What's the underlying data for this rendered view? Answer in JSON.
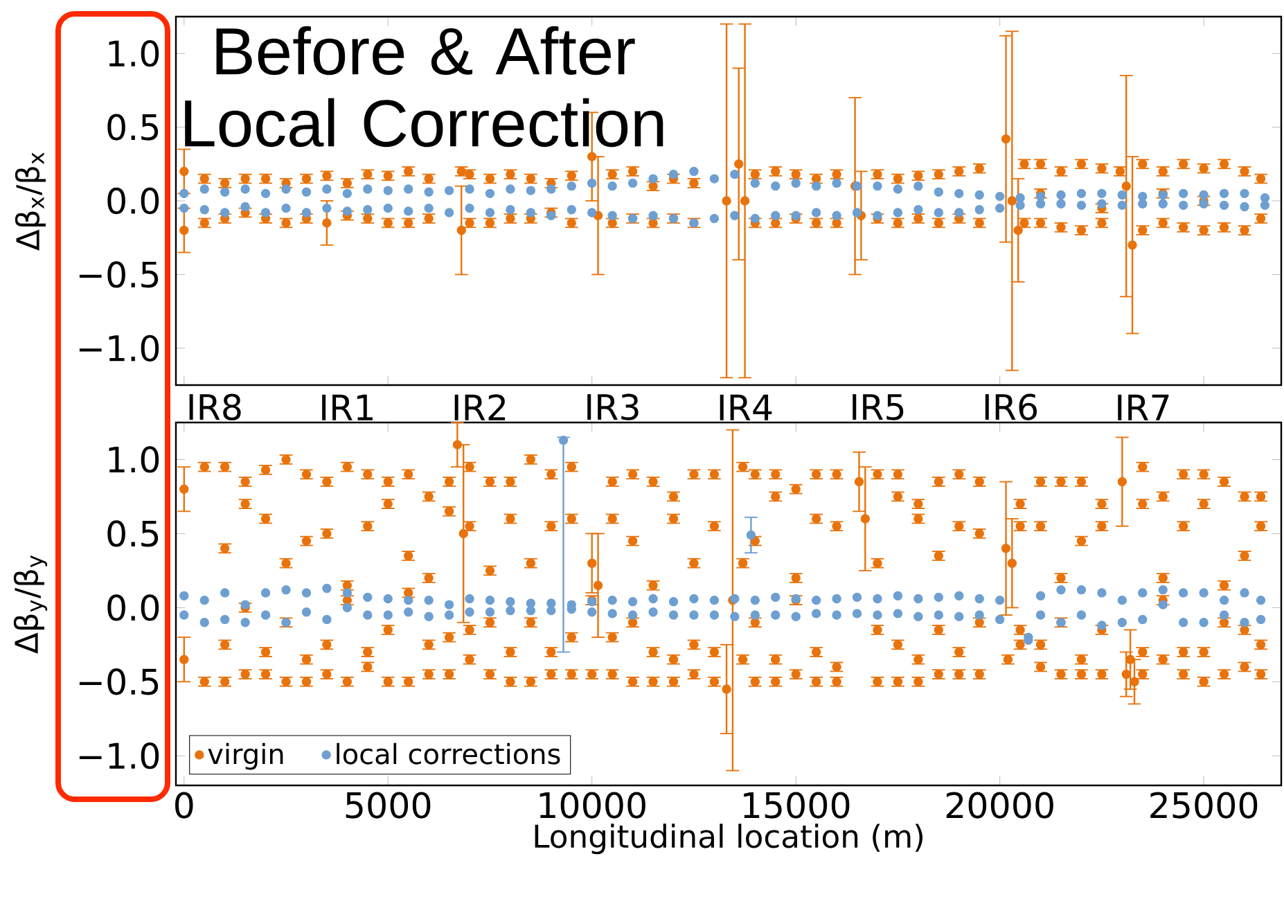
{
  "chart_data": [
    {
      "type": "scatter",
      "ylabel": "Δβ$_{x}$/β$_{x}$",
      "annotations": [
        "Before & After Local Correction"
      ],
      "xlim": [
        -200,
        26900
      ],
      "ylim": [
        -1.25,
        1.25
      ],
      "xticks": [
        0,
        5000,
        10000,
        15000,
        20000,
        25000
      ],
      "yticks": [
        {
          "value": -1,
          "label": "−1.0"
        },
        {
          "value": -0.5,
          "label": "−0.5"
        },
        {
          "value": 0,
          "label": "0.0"
        },
        {
          "value": 0.5,
          "label": "0.5"
        },
        {
          "value": 1,
          "label": "1.0"
        }
      ],
      "tick_labels": "y",
      "marker": "circle",
      "series": [
        {
          "color": "#e8730c",
          "x": [
            0,
            0,
            500,
            500,
            1000,
            1000,
            1500,
            1500,
            2000,
            2000,
            2500,
            2500,
            3000,
            3000,
            3500,
            3500,
            4000,
            4000,
            4500,
            4500,
            5000,
            5000,
            5500,
            5500,
            6000,
            6000,
            6800,
            6800,
            7000,
            7000,
            7500,
            7500,
            8000,
            8000,
            8500,
            8500,
            9000,
            9000,
            9500,
            9500,
            10000,
            10150,
            10500,
            10500,
            11000,
            11000,
            11500,
            11500,
            12000,
            12000,
            12500,
            12500,
            13300,
            13600,
            13750,
            14000,
            14000,
            14500,
            14500,
            15000,
            15000,
            15500,
            15500,
            16000,
            16000,
            16450,
            16600,
            17000,
            17000,
            17500,
            17500,
            18000,
            18000,
            18500,
            18500,
            19000,
            19000,
            19500,
            19500,
            20150,
            20300,
            20450,
            20600,
            20600,
            21000,
            21000,
            21000,
            21500,
            21500,
            22000,
            22000,
            22500,
            22500,
            22500,
            22950,
            23100,
            23250,
            23500,
            23500,
            24000,
            24000,
            24000,
            24500,
            24500,
            25000,
            25000,
            25000,
            25500,
            25500,
            26000,
            26000,
            26400,
            26400
          ],
          "values": [
            0.2,
            -0.2,
            0.15,
            -0.15,
            0.12,
            -0.12,
            0.15,
            -0.08,
            0.15,
            -0.12,
            0.12,
            -0.15,
            0.15,
            -0.12,
            0.17,
            -0.15,
            0.12,
            -0.1,
            0.18,
            -0.12,
            0.17,
            -0.15,
            0.2,
            -0.15,
            0.15,
            -0.12,
            0.2,
            -0.2,
            0.18,
            -0.15,
            0.15,
            -0.15,
            0.18,
            -0.12,
            0.15,
            -0.12,
            0.12,
            -0.08,
            0.17,
            -0.15,
            0.3,
            -0.1,
            0.18,
            -0.15,
            0.2,
            -0.12,
            0.1,
            -0.15,
            0.15,
            -0.12,
            0.12,
            -0.15,
            0.0,
            0.25,
            0.0,
            0.18,
            -0.15,
            0.2,
            -0.15,
            0.18,
            -0.12,
            0.15,
            -0.15,
            0.18,
            -0.15,
            0.1,
            -0.1,
            0.18,
            -0.12,
            0.15,
            -0.15,
            0.17,
            -0.12,
            0.18,
            -0.15,
            0.2,
            -0.12,
            0.22,
            -0.15,
            0.42,
            0.0,
            -0.2,
            0.25,
            -0.15,
            0.25,
            0.05,
            -0.15,
            0.2,
            -0.18,
            0.25,
            -0.2,
            0.22,
            -0.05,
            -0.15,
            0.2,
            0.1,
            -0.3,
            0.25,
            -0.2,
            0.2,
            0.05,
            -0.15,
            0.25,
            -0.18,
            0.22,
            0.0,
            -0.2,
            0.25,
            -0.18,
            0.2,
            -0.2,
            0.15,
            -0.12
          ],
          "errors": [
            0.15,
            0.15,
            0.03,
            0.03,
            0.03,
            0.03,
            0.03,
            0.03,
            0.03,
            0.03,
            0.03,
            0.03,
            0.03,
            0.03,
            0.03,
            0.15,
            0.03,
            0.03,
            0.03,
            0.03,
            0.03,
            0.03,
            0.03,
            0.03,
            0.03,
            0.03,
            0.03,
            0.3,
            0.03,
            0.03,
            0.03,
            0.03,
            0.03,
            0.03,
            0.03,
            0.03,
            0.03,
            0.03,
            0.03,
            0.03,
            0.3,
            0.4,
            0.03,
            0.03,
            0.03,
            0.03,
            0.03,
            0.03,
            0.03,
            0.03,
            0.03,
            0.03,
            1.2,
            0.65,
            1.2,
            0.03,
            0.03,
            0.03,
            0.03,
            0.03,
            0.03,
            0.03,
            0.03,
            0.03,
            0.03,
            0.6,
            0.3,
            0.03,
            0.03,
            0.03,
            0.03,
            0.03,
            0.03,
            0.03,
            0.03,
            0.03,
            0.03,
            0.03,
            0.03,
            0.7,
            1.15,
            0.35,
            0.03,
            0.03,
            0.03,
            0.03,
            0.03,
            0.03,
            0.03,
            0.03,
            0.03,
            0.03,
            0.03,
            0.03,
            0.03,
            0.75,
            0.6,
            0.03,
            0.03,
            0.03,
            0.03,
            0.03,
            0.03,
            0.03,
            0.03,
            0.03,
            0.03,
            0.03,
            0.03,
            0.03,
            0.03,
            0.03,
            0.03
          ]
        },
        {
          "color": "#6d9fd1",
          "x": [
            0,
            0,
            500,
            500,
            1000,
            1000,
            1500,
            1500,
            2000,
            2000,
            2500,
            2500,
            3000,
            3000,
            3500,
            3500,
            4000,
            4000,
            4500,
            4500,
            5000,
            5000,
            5500,
            5500,
            6000,
            6000,
            6500,
            6500,
            7000,
            7000,
            7500,
            7500,
            8000,
            8000,
            8500,
            8500,
            9000,
            9000,
            9500,
            9500,
            10000,
            10000,
            10500,
            10500,
            11000,
            11000,
            11500,
            11500,
            12000,
            12000,
            12500,
            12500,
            13000,
            13000,
            13500,
            13500,
            14000,
            14000,
            14500,
            14500,
            15000,
            15000,
            15500,
            15500,
            16000,
            16000,
            16500,
            16500,
            17000,
            17000,
            17500,
            17500,
            18000,
            18000,
            18500,
            18500,
            19000,
            19000,
            19500,
            19500,
            20000,
            20000,
            20500,
            20500,
            21000,
            21000,
            21500,
            21500,
            22000,
            22000,
            22500,
            22500,
            23000,
            23000,
            23500,
            23500,
            24000,
            24000,
            24500,
            24500,
            25000,
            25000,
            25500,
            25500,
            26000,
            26000,
            26500,
            26500
          ],
          "values": [
            0.05,
            -0.05,
            0.08,
            -0.06,
            0.06,
            -0.08,
            0.08,
            -0.04,
            0.05,
            -0.08,
            0.08,
            -0.05,
            0.06,
            -0.08,
            0.08,
            -0.05,
            0.05,
            -0.07,
            0.08,
            -0.06,
            0.07,
            -0.05,
            0.08,
            -0.07,
            0.06,
            -0.05,
            0.07,
            -0.08,
            0.08,
            -0.05,
            0.05,
            -0.08,
            0.08,
            -0.06,
            0.07,
            -0.08,
            0.08,
            -0.1,
            0.1,
            -0.06,
            0.12,
            -0.08,
            0.1,
            -0.1,
            0.12,
            -0.12,
            0.15,
            -0.1,
            0.18,
            -0.12,
            0.2,
            -0.15,
            0.15,
            -0.12,
            0.18,
            -0.1,
            0.12,
            -0.12,
            0.1,
            -0.1,
            0.12,
            -0.1,
            0.1,
            -0.08,
            0.12,
            -0.1,
            0.1,
            -0.08,
            0.1,
            -0.1,
            0.08,
            -0.08,
            0.1,
            -0.06,
            0.06,
            -0.08,
            0.05,
            -0.08,
            0.04,
            -0.06,
            0.03,
            -0.05,
            0.02,
            -0.03,
            0.03,
            -0.02,
            0.04,
            -0.02,
            0.05,
            -0.03,
            0.05,
            -0.02,
            0.04,
            -0.03,
            0.03,
            -0.02,
            0.04,
            -0.02,
            0.05,
            -0.03,
            0.04,
            -0.02,
            0.05,
            -0.03,
            0.05,
            -0.04,
            0.02,
            -0.03
          ]
        }
      ]
    },
    {
      "type": "scatter",
      "xlabel": "Longitudinal location (m)",
      "ylabel": "Δβ$_{y}$/β$_{y}$",
      "annotations": [
        "IR8",
        "IR1",
        "IR2",
        "IR3",
        "IR4",
        "IR5",
        "IR6",
        "IR7"
      ],
      "xlim": [
        -200,
        26900
      ],
      "ylim": [
        -1.2,
        1.25
      ],
      "xticks": [
        0,
        5000,
        10000,
        15000,
        20000,
        25000
      ],
      "yticks": [
        {
          "value": -1,
          "label": "−1.0"
        },
        {
          "value": -0.5,
          "label": "−0.5"
        },
        {
          "value": 0,
          "label": "0.0"
        },
        {
          "value": 0.5,
          "label": "0.5"
        },
        {
          "value": 1,
          "label": "1.0"
        }
      ],
      "legend": "bottom left",
      "marker": "circle",
      "series": [
        {
          "name": "virgin",
          "color": "#e8730c",
          "x": [
            0,
            0,
            500,
            500,
            1000,
            1000,
            1000,
            1000,
            1500,
            1500,
            1500,
            1500,
            2000,
            2000,
            2000,
            2000,
            2500,
            2500,
            2500,
            2500,
            3000,
            3000,
            3000,
            3000,
            3500,
            3500,
            3500,
            3500,
            4000,
            4000,
            4000,
            4000,
            4500,
            4500,
            4500,
            4500,
            5000,
            5000,
            5000,
            5000,
            5500,
            5500,
            5500,
            5500,
            6000,
            6000,
            6000,
            6000,
            6500,
            6500,
            6500,
            6500,
            6700,
            6850,
            7000,
            7000,
            7000,
            7000,
            7500,
            7500,
            7500,
            7500,
            8000,
            8000,
            8000,
            8000,
            8500,
            8500,
            8500,
            8500,
            9000,
            9000,
            9000,
            9000,
            9500,
            9500,
            9500,
            9500,
            10000,
            10150,
            10000,
            10000,
            10500,
            10500,
            10500,
            10500,
            11000,
            11000,
            11000,
            11000,
            11500,
            11500,
            11500,
            11500,
            12000,
            12000,
            12000,
            12000,
            12500,
            12500,
            12500,
            12500,
            13000,
            13000,
            13000,
            13000,
            13300,
            13450,
            13700,
            13700,
            13700,
            14000,
            14000,
            14000,
            14000,
            14500,
            14500,
            14500,
            14500,
            15000,
            15000,
            15000,
            15000,
            15500,
            15500,
            15500,
            15500,
            16000,
            16000,
            16000,
            16000,
            16550,
            16700,
            17000,
            17000,
            17000,
            17000,
            17500,
            17500,
            17500,
            17500,
            18000,
            18000,
            18000,
            18000,
            18500,
            18500,
            18500,
            18500,
            19000,
            19000,
            19000,
            19000,
            19500,
            19500,
            19500,
            19500,
            20150,
            20300,
            20200,
            20500,
            20500,
            20500,
            20500,
            21000,
            21000,
            21000,
            21000,
            21500,
            21500,
            21500,
            21500,
            22000,
            22000,
            22000,
            22000,
            22500,
            22500,
            22500,
            22500,
            23000,
            23100,
            23200,
            23300,
            23500,
            23500,
            23500,
            23500,
            24000,
            24000,
            24000,
            24000,
            24500,
            24500,
            24500,
            24500,
            25000,
            25000,
            25000,
            25000,
            25500,
            25500,
            25500,
            25500,
            26000,
            26000,
            26000,
            26000,
            26400,
            26400,
            26400,
            26400
          ],
          "values": [
            0.8,
            -0.35,
            0.95,
            -0.5,
            0.95,
            0.4,
            -0.5,
            -0.25,
            0.85,
            0.7,
            -0.45,
            0.0,
            0.6,
            0.93,
            -0.3,
            -0.45,
            0.3,
            1.0,
            -0.1,
            -0.5,
            0.45,
            0.9,
            -0.35,
            -0.5,
            0.85,
            0.5,
            -0.45,
            -0.25,
            0.95,
            0.15,
            -0.5,
            0.05,
            0.9,
            0.55,
            -0.3,
            -0.4,
            0.7,
            0.85,
            -0.5,
            -0.15,
            0.35,
            0.9,
            -0.5,
            0.1,
            0.2,
            0.75,
            -0.45,
            -0.25,
            0.65,
            0.85,
            -0.2,
            -0.45,
            1.1,
            0.5,
            0.95,
            0.55,
            -0.35,
            -0.15,
            0.85,
            0.25,
            -0.45,
            -0.1,
            0.6,
            0.85,
            -0.3,
            -0.5,
            0.3,
            1.0,
            -0.1,
            -0.5,
            0.9,
            0.55,
            -0.45,
            -0.3,
            0.95,
            0.6,
            -0.2,
            -0.45,
            0.3,
            0.15,
            -0.45,
            0.05,
            0.6,
            0.85,
            -0.2,
            -0.45,
            0.9,
            0.45,
            -0.5,
            -0.1,
            0.85,
            0.15,
            -0.5,
            -0.3,
            0.6,
            0.75,
            -0.35,
            -0.5,
            0.3,
            0.9,
            -0.25,
            -0.45,
            0.9,
            0.55,
            -0.5,
            -0.3,
            -0.55,
            0.05,
            0.95,
            0.3,
            -0.35,
            0.9,
            0.45,
            -0.5,
            -0.1,
            0.9,
            0.75,
            -0.5,
            -0.35,
            0.8,
            0.2,
            -0.45,
            0.05,
            0.9,
            0.6,
            -0.5,
            -0.3,
            0.9,
            0.55,
            -0.4,
            -0.5,
            0.85,
            0.6,
            0.9,
            0.3,
            -0.5,
            -0.15,
            0.9,
            0.75,
            -0.5,
            -0.25,
            0.6,
            0.7,
            -0.35,
            -0.5,
            0.35,
            0.85,
            -0.15,
            -0.45,
            0.55,
            0.9,
            -0.3,
            -0.45,
            0.85,
            0.5,
            -0.45,
            -0.1,
            0.4,
            0.3,
            -0.35,
            0.7,
            0.55,
            -0.25,
            -0.15,
            0.55,
            0.85,
            -0.25,
            -0.4,
            0.2,
            0.85,
            -0.1,
            -0.45,
            0.45,
            0.85,
            -0.35,
            -0.45,
            0.7,
            0.55,
            -0.45,
            -0.15,
            0.85,
            -0.45,
            -0.35,
            -0.5,
            0.95,
            0.7,
            -0.45,
            -0.3,
            0.75,
            0.2,
            -0.35,
            0.05,
            0.9,
            0.55,
            -0.45,
            -0.3,
            0.9,
            0.7,
            -0.5,
            -0.3,
            0.85,
            0.15,
            -0.45,
            -0.1,
            0.75,
            0.35,
            -0.4,
            -0.15,
            0.55,
            0.75,
            -0.25,
            -0.45
          ],
          "errors": [
            0.15,
            0.15,
            0.03,
            0.03,
            0.03,
            0.03,
            0.03,
            0.03,
            0.03,
            0.03,
            0.03,
            0.03,
            0.03,
            0.03,
            0.03,
            0.03,
            0.03,
            0.03,
            0.03,
            0.03,
            0.03,
            0.03,
            0.03,
            0.03,
            0.03,
            0.03,
            0.03,
            0.03,
            0.03,
            0.03,
            0.03,
            0.03,
            0.03,
            0.03,
            0.03,
            0.03,
            0.03,
            0.03,
            0.03,
            0.03,
            0.03,
            0.03,
            0.03,
            0.03,
            0.03,
            0.03,
            0.03,
            0.03,
            0.03,
            0.03,
            0.03,
            0.03,
            0.15,
            0.6,
            0.03,
            0.03,
            0.03,
            0.03,
            0.03,
            0.03,
            0.03,
            0.03,
            0.03,
            0.03,
            0.03,
            0.03,
            0.03,
            0.03,
            0.03,
            0.03,
            0.03,
            0.03,
            0.03,
            0.03,
            0.03,
            0.03,
            0.03,
            0.03,
            0.2,
            0.35,
            0.03,
            0.03,
            0.03,
            0.03,
            0.03,
            0.03,
            0.03,
            0.03,
            0.03,
            0.03,
            0.03,
            0.03,
            0.03,
            0.03,
            0.03,
            0.03,
            0.03,
            0.03,
            0.03,
            0.03,
            0.03,
            0.03,
            0.03,
            0.03,
            0.03,
            0.03,
            0.3,
            1.15,
            0.03,
            0.03,
            0.03,
            0.03,
            0.03,
            0.03,
            0.03,
            0.03,
            0.03,
            0.03,
            0.03,
            0.03,
            0.03,
            0.03,
            0.03,
            0.03,
            0.03,
            0.03,
            0.03,
            0.03,
            0.03,
            0.03,
            0.03,
            0.2,
            0.35,
            0.03,
            0.03,
            0.03,
            0.03,
            0.03,
            0.03,
            0.03,
            0.03,
            0.03,
            0.03,
            0.03,
            0.03,
            0.03,
            0.03,
            0.03,
            0.03,
            0.03,
            0.03,
            0.03,
            0.03,
            0.03,
            0.03,
            0.03,
            0.03,
            0.45,
            0.3,
            0.03,
            0.03,
            0.03,
            0.03,
            0.03,
            0.03,
            0.03,
            0.03,
            0.03,
            0.03,
            0.03,
            0.03,
            0.03,
            0.03,
            0.03,
            0.03,
            0.03,
            0.03,
            0.03,
            0.03,
            0.03,
            0.3,
            0.15,
            0.2,
            0.15,
            0.03,
            0.03,
            0.03,
            0.03,
            0.03,
            0.03,
            0.03,
            0.03,
            0.03,
            0.03,
            0.03,
            0.03,
            0.03,
            0.03,
            0.03,
            0.03,
            0.03,
            0.03,
            0.03,
            0.03,
            0.03,
            0.03,
            0.03,
            0.03,
            0.03,
            0.03,
            0.03,
            0.03
          ]
        },
        {
          "name": "local corrections",
          "color": "#6d9fd1",
          "x": [
            0,
            0,
            500,
            500,
            1000,
            1000,
            1500,
            1500,
            2000,
            2000,
            2500,
            2500,
            3000,
            3000,
            3500,
            3500,
            4000,
            4000,
            4500,
            4500,
            5000,
            5000,
            5500,
            5500,
            6000,
            6000,
            6500,
            6500,
            7000,
            7000,
            7500,
            7500,
            8000,
            8000,
            8500,
            8500,
            9000,
            9000,
            9300,
            9500,
            9500,
            10000,
            10000,
            10500,
            10500,
            11000,
            11000,
            11500,
            11500,
            12000,
            12000,
            12500,
            12500,
            13000,
            13000,
            13500,
            13500,
            13900,
            14000,
            14000,
            14500,
            14500,
            15000,
            15000,
            15500,
            15500,
            16000,
            16000,
            16500,
            16500,
            17000,
            17000,
            17500,
            17500,
            18000,
            18000,
            18500,
            18500,
            19000,
            19000,
            19500,
            19500,
            20000,
            20000,
            20700,
            20700,
            21000,
            21000,
            21500,
            21500,
            22000,
            22000,
            22500,
            22500,
            23000,
            23000,
            23500,
            23500,
            24000,
            24000,
            24500,
            24500,
            25000,
            25000,
            25500,
            25500,
            26000,
            26000,
            26400,
            26400
          ],
          "values": [
            0.08,
            -0.05,
            0.05,
            -0.1,
            0.1,
            -0.08,
            0.02,
            -0.1,
            0.1,
            -0.05,
            0.12,
            -0.1,
            0.1,
            -0.03,
            0.13,
            -0.08,
            0.1,
            0.0,
            0.07,
            -0.05,
            0.06,
            -0.05,
            0.05,
            -0.03,
            0.05,
            -0.06,
            0.02,
            -0.05,
            0.06,
            -0.03,
            0.05,
            -0.03,
            0.04,
            -0.02,
            0.03,
            -0.02,
            0.03,
            -0.02,
            1.13,
            0.02,
            -0.01,
            0.04,
            -0.03,
            0.05,
            -0.04,
            0.04,
            -0.05,
            0.06,
            -0.03,
            0.04,
            -0.05,
            0.06,
            -0.05,
            0.05,
            -0.05,
            0.06,
            -0.06,
            0.49,
            0.05,
            -0.05,
            0.07,
            -0.05,
            0.06,
            -0.06,
            0.05,
            -0.04,
            0.06,
            -0.05,
            0.07,
            -0.04,
            0.06,
            -0.05,
            0.08,
            -0.04,
            0.06,
            -0.06,
            0.07,
            -0.05,
            0.08,
            -0.06,
            0.06,
            -0.05,
            0.05,
            -0.08,
            -0.2,
            -0.22,
            0.08,
            -0.05,
            0.12,
            -0.1,
            0.12,
            -0.05,
            0.1,
            -0.12,
            0.05,
            -0.1,
            0.1,
            -0.08,
            0.12,
            0.02,
            0.1,
            -0.1,
            0.1,
            -0.1,
            0.05,
            -0.05,
            0.1,
            -0.1,
            0.05,
            -0.08
          ],
          "errors": [
            null,
            null,
            null,
            null,
            null,
            null,
            null,
            null,
            null,
            null,
            null,
            null,
            null,
            null,
            null,
            null,
            null,
            null,
            null,
            null,
            null,
            null,
            null,
            null,
            null,
            null,
            null,
            null,
            null,
            null,
            null,
            null,
            null,
            null,
            null,
            null,
            null,
            null,
            [
              -0.3,
              1.15
            ],
            null,
            null,
            null,
            null,
            null,
            null,
            null,
            null,
            null,
            null,
            null,
            null,
            null,
            null,
            null,
            null,
            null,
            null,
            0.12,
            null,
            null,
            null,
            null,
            null,
            null,
            null,
            null,
            null,
            null,
            null,
            null,
            null,
            null,
            null,
            null,
            null,
            null,
            null,
            null,
            null,
            null,
            null,
            null,
            null,
            null,
            null,
            null,
            null,
            null,
            null,
            null,
            null,
            null,
            null,
            null,
            null,
            null,
            null,
            null,
            null,
            null,
            null,
            null,
            null,
            null,
            null,
            null,
            null,
            null,
            null,
            null
          ]
        }
      ]
    }
  ]
}
